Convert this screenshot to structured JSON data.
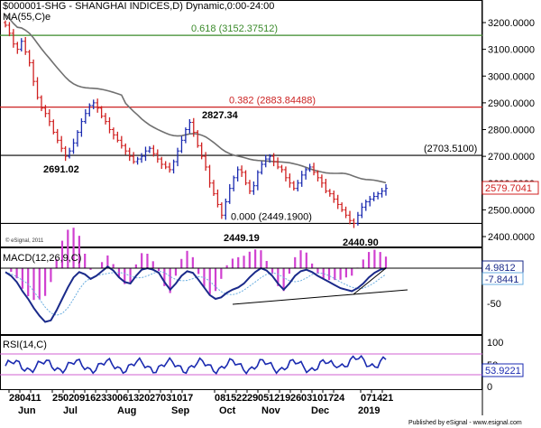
{
  "chart_data": [
    {
      "type": "candlestick",
      "title": "$000001-SHG - SHANGHAI INDICES,D) Dynamic,0:00-24:00",
      "indicator_label": "MA(55,C)e",
      "watermark": "© eSignal, 2011",
      "ylim": [
        2400,
        3250
      ],
      "y_ticks": [
        "3200.0000",
        "3100.0000",
        "3000.0000",
        "2900.0000",
        "2800.0000",
        "2700.0000",
        "2600.0000",
        "2500.0000",
        "2400.0000"
      ],
      "last_price": "2579.7041",
      "horizontal_levels": [
        {
          "label": "0.618 (3152.37512)",
          "value": 3152.37512,
          "color": "#3a8a2a"
        },
        {
          "label": "0.382 (2883.84488)",
          "value": 2883.84488,
          "color": "#cc2222"
        },
        {
          "label": "(2703.5100)",
          "value": 2703.51,
          "color": "#000000"
        },
        {
          "label": "0.000 (2449.1900)",
          "value": 2449.19,
          "color": "#000000"
        }
      ],
      "annotations": [
        "2827.34",
        "2691.02",
        "2449.19",
        "2440.90"
      ],
      "close_series": [
        3190,
        3160,
        3120,
        3100,
        3130,
        3090,
        3050,
        2980,
        2920,
        2880,
        2860,
        2830,
        2790,
        2760,
        2730,
        2700,
        2720,
        2750,
        2790,
        2830,
        2860,
        2890,
        2900,
        2880,
        2850,
        2830,
        2800,
        2780,
        2760,
        2740,
        2720,
        2700,
        2680,
        2690,
        2700,
        2720,
        2730,
        2710,
        2690,
        2670,
        2660,
        2650,
        2680,
        2720,
        2760,
        2800,
        2827,
        2790,
        2740,
        2700,
        2660,
        2600,
        2560,
        2520,
        2480,
        2530,
        2580,
        2620,
        2650,
        2640,
        2600,
        2570,
        2590,
        2640,
        2670,
        2690,
        2700,
        2680,
        2660,
        2650,
        2620,
        2600,
        2580,
        2600,
        2630,
        2650,
        2660,
        2640,
        2620,
        2600,
        2570,
        2560,
        2540,
        2520,
        2500,
        2480,
        2460,
        2449,
        2480,
        2510,
        2530,
        2540,
        2550,
        2560,
        2570,
        2580
      ]
    },
    {
      "type": "histogram_line",
      "title": "MACD(12,26,9,C)",
      "values_labels": [
        "4.9812",
        "-7.8441"
      ],
      "y_ticks": [
        "-50"
      ]
    },
    {
      "type": "line",
      "title": "RSI(14,C)",
      "value_label": "53.9221",
      "y_ticks": [
        "100",
        "50",
        "0"
      ]
    }
  ],
  "x_axis": {
    "day_ticks": [
      "28",
      "04",
      "11",
      "25",
      "02",
      "09",
      "16",
      "23",
      "30",
      "06",
      "13",
      "20",
      "27",
      "03",
      "10",
      "17",
      "08",
      "15",
      "22",
      "29",
      "05",
      "12",
      "19",
      "26",
      "03",
      "10",
      "17",
      "24",
      "07",
      "14",
      "21"
    ],
    "month_ticks": [
      "Jun",
      "Jul",
      "Aug",
      "Sep",
      "Oct",
      "Nov",
      "Dec",
      "2019"
    ]
  },
  "footer": "Published by eSignal - www.esignal.com"
}
